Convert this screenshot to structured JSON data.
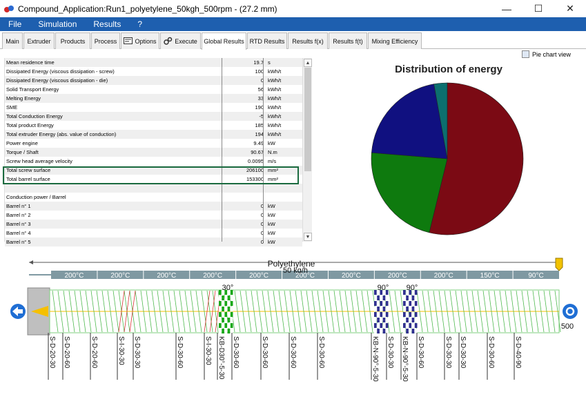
{
  "window": {
    "title": "Compound_Application:Run1_polyetylene_50kgh_500rpm - (27.2 mm)",
    "min_symbol": "—",
    "max_symbol": "☐",
    "close_symbol": "✕"
  },
  "menu": [
    "File",
    "Simulation",
    "Results",
    "?"
  ],
  "tabs": [
    {
      "label": "Main"
    },
    {
      "label": "Extruder"
    },
    {
      "label": "Products"
    },
    {
      "label": "Process"
    },
    {
      "label": "Options"
    },
    {
      "label": "Execute"
    },
    {
      "label": "Global Results"
    },
    {
      "label": "RTD Results"
    },
    {
      "label": "Results f(x)"
    },
    {
      "label": "Results f(t)"
    },
    {
      "label": "Mixing Efficiency"
    }
  ],
  "pie_check_label": "Pie chart view",
  "table_rows": [
    {
      "label": "Mean residence time",
      "value": "19.7",
      "unit": "s"
    },
    {
      "label": "Dissipated Energy (viscous dissipation - screw)",
      "value": "100",
      "unit": "kWh/t"
    },
    {
      "label": "Dissipated Energy (viscous dissipation - die)",
      "value": "0",
      "unit": "kWh/t"
    },
    {
      "label": "Solid Transport Energy",
      "value": "56",
      "unit": "kWh/t"
    },
    {
      "label": "Melting Energy",
      "value": "33",
      "unit": "kWh/t"
    },
    {
      "label": "SME",
      "value": "190",
      "unit": "kWh/t"
    },
    {
      "label": "Total Conduction Energy",
      "value": "-5",
      "unit": "kWh/t"
    },
    {
      "label": "Total product Energy",
      "value": "185",
      "unit": "kWh/t"
    },
    {
      "label": "Total extruder Energy (abs. value of conduction)",
      "value": "194",
      "unit": "kWh/t"
    },
    {
      "label": "Power engine",
      "value": "9.49",
      "unit": "kW"
    },
    {
      "label": "Torque / Shaft",
      "value": "90.67",
      "unit": "N.m"
    },
    {
      "label": "Screw head average velocity",
      "value": "0.0095",
      "unit": "m/s"
    },
    {
      "label": "Total screw surface",
      "value": "206100",
      "unit": "mm²"
    },
    {
      "label": "Total barrel surface",
      "value": "153300",
      "unit": "mm²"
    },
    {
      "label": "",
      "value": "",
      "unit": ""
    },
    {
      "label": "Conduction power / Barrel",
      "value": "",
      "unit": ""
    },
    {
      "label": "Barrel n° 1",
      "value": "0",
      "unit": "kW"
    },
    {
      "label": "Barrel n° 2",
      "value": "0",
      "unit": "kW"
    },
    {
      "label": "Barrel n° 3",
      "value": "0",
      "unit": "kW"
    },
    {
      "label": "Barrel n° 4",
      "value": "0",
      "unit": "kW"
    },
    {
      "label": "Barrel n° 5",
      "value": "0",
      "unit": "kW"
    }
  ],
  "chart_data": {
    "type": "pie",
    "title": "Distribution of energy",
    "slices": [
      {
        "color": "#7b0a14",
        "value": 51.5
      },
      {
        "color": "#0e7a0e",
        "value": 21.5
      },
      {
        "color": "#101080",
        "value": 20.0
      },
      {
        "color": "#0c6f6f",
        "value": 2.7
      }
    ]
  },
  "screw": {
    "material": "Polyethylene",
    "flow": "50 kg/h",
    "speed": "500",
    "temperatures": [
      "200°C",
      "200°C",
      "200°C",
      "200°C",
      "200°C",
      "200°C",
      "200°C",
      "200°C",
      "200°C",
      "150°C",
      "90°C"
    ],
    "angles": [
      "30°",
      "90°",
      "90°"
    ],
    "element_labels": [
      "S-D-20-30",
      "S-D-20-60",
      "S-D-20-60",
      "S-I-30-30",
      "S-D-30-30",
      "S-D-30-60",
      "S-I-30-30",
      "KB-D30°-5-30",
      "S-D-30-60",
      "S-D-30-60",
      "S-D-30-60",
      "S-D-30-60",
      "KB-N-90°-5-30",
      "S-D-30-30",
      "KB-N-90°-5-30",
      "S-D-30-60",
      "S-D-30-30",
      "S-D-30-30",
      "S-D-30-60",
      "S-D-40-90"
    ]
  }
}
